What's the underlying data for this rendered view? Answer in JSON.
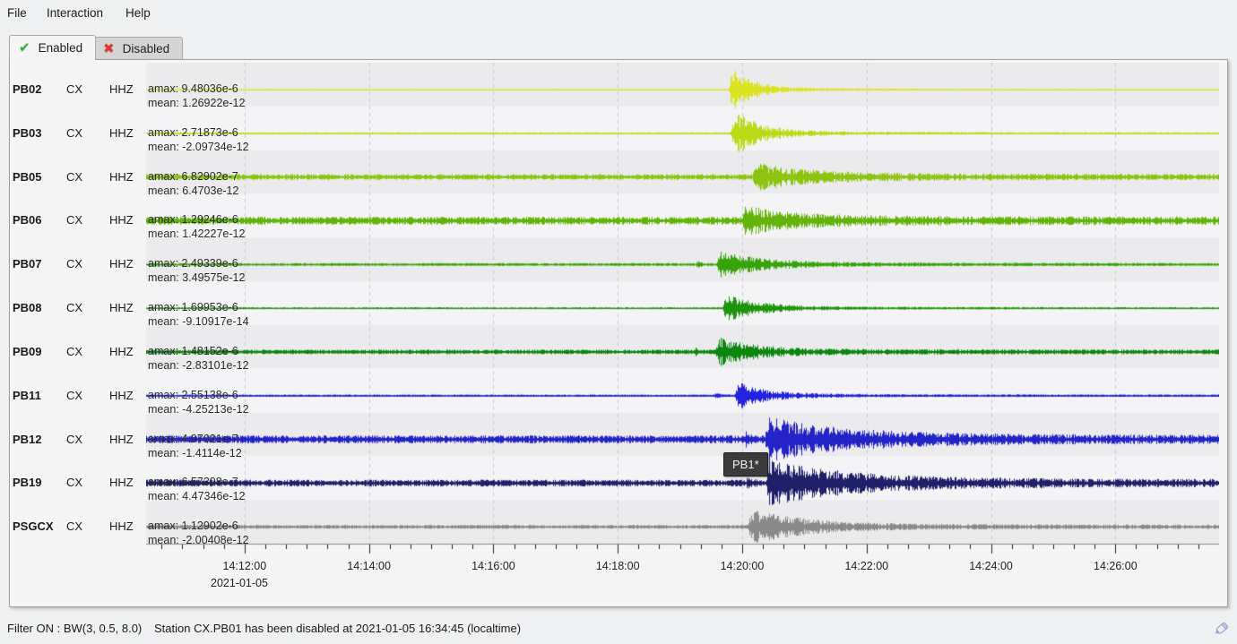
{
  "menu": {
    "items": [
      "File",
      "Interaction",
      "Help"
    ]
  },
  "tabs": {
    "enabled": {
      "label": "Enabled",
      "icon": "green-check"
    },
    "disabled": {
      "label": "Disabled",
      "icon": "red-cross"
    }
  },
  "colors": {
    "panel_bg": "#f5f5f6",
    "band_dark": "#ebebed",
    "band_light": "#f4f4f6",
    "gridline": "#c7c9cb",
    "axis_line": "#8a8a8a",
    "tick": "#222222",
    "tooltip_bg": "#3b3b3b"
  },
  "stations": [
    {
      "code": "PB02",
      "network": "CX",
      "channel": "HHZ",
      "amax": "amax: 9.48036e-6",
      "mean": "mean: 1.26922e-12",
      "color": "#d9e41f",
      "trace": {
        "noise": 0.6,
        "burst_s": 1190,
        "amp": 23,
        "decay": 22,
        "pre": false
      }
    },
    {
      "code": "PB03",
      "network": "CX",
      "channel": "HHZ",
      "amax": "amax: 2.71873e-6",
      "mean": "mean: -2.09734e-12",
      "color": "#b9da14",
      "trace": {
        "noise": 1.0,
        "burst_s": 1192,
        "amp": 23,
        "decay": 28,
        "pre": false
      }
    },
    {
      "code": "PB05",
      "network": "CX",
      "channel": "HHZ",
      "amax": "amax: 6.82902e-7",
      "mean": "mean: 6.4703e-12",
      "color": "#8cc40f",
      "trace": {
        "noise": 3.2,
        "burst_s": 1213,
        "amp": 13,
        "decay": 55,
        "pre": false
      }
    },
    {
      "code": "PB06",
      "network": "CX",
      "channel": "HHZ",
      "amax": "amax: 1.29246e-6",
      "mean": "mean: 1.42227e-12",
      "color": "#63b309",
      "trace": {
        "noise": 4.5,
        "burst_s": 1203,
        "amp": 13,
        "decay": 50,
        "pre": false
      }
    },
    {
      "code": "PB07",
      "network": "CX",
      "channel": "HHZ",
      "amax": "amax: 2.49339e-6",
      "mean": "mean: 3.49575e-12",
      "color": "#36a309",
      "trace": {
        "noise": 1.6,
        "burst_s": 1178,
        "amp": 13,
        "decay": 45,
        "pre": true
      }
    },
    {
      "code": "PB08",
      "network": "CX",
      "channel": "HHZ",
      "amax": "amax: 1.69953e-6",
      "mean": "mean: -9.10917e-14",
      "color": "#1d9409",
      "trace": {
        "noise": 1.1,
        "burst_s": 1184,
        "amp": 14,
        "decay": 35,
        "pre": false
      }
    },
    {
      "code": "PB09",
      "network": "CX",
      "channel": "HHZ",
      "amax": "amax: 1.48152e-6",
      "mean": "mean: -2.83101e-12",
      "color": "#0c860f",
      "trace": {
        "noise": 2.6,
        "burst_s": 1177,
        "amp": 13,
        "decay": 40,
        "pre": true
      }
    },
    {
      "code": "PB11",
      "network": "CX",
      "channel": "HHZ",
      "amax": "amax: 2.55138e-6",
      "mean": "mean: -4.25213e-12",
      "color": "#2222e0",
      "trace": {
        "noise": 1.3,
        "burst_s": 1196,
        "amp": 13,
        "decay": 30,
        "pre": true
      }
    },
    {
      "code": "PB12",
      "network": "CX",
      "channel": "HHZ",
      "amax": "amax: 4.97021e-7",
      "mean": "mean: -1.4114e-12",
      "color": "#2323c8",
      "trace": {
        "noise": 4.5,
        "burst_s": 1225,
        "amp": 19,
        "decay": 85,
        "pre": true
      }
    },
    {
      "code": "PB19",
      "network": "CX",
      "channel": "HHZ",
      "amax": "amax: 6.57308e-7",
      "mean": "mean: 4.47346e-12",
      "color": "#20206a",
      "trace": {
        "noise": 3.8,
        "burst_s": 1226,
        "amp": 21,
        "decay": 85,
        "pre": true
      }
    },
    {
      "code": "PSGCX",
      "network": "CX",
      "channel": "HHZ",
      "amax": "amax: 1.12902e-6",
      "mean": "mean: -2.00408e-12",
      "color": "#8a8a8a",
      "trace": {
        "noise": 2.2,
        "burst_s": 1208,
        "amp": 17,
        "decay": 55,
        "pre": false
      }
    }
  ],
  "axis": {
    "window": [
      625,
      1660
    ],
    "minor_step": 20,
    "date": "2021-01-05",
    "ticks": [
      {
        "s": 720,
        "label": "14:12:00"
      },
      {
        "s": 840,
        "label": "14:14:00"
      },
      {
        "s": 960,
        "label": "14:16:00"
      },
      {
        "s": 1080,
        "label": "14:18:00"
      },
      {
        "s": 1200,
        "label": "14:20:00"
      },
      {
        "s": 1320,
        "label": "14:22:00"
      },
      {
        "s": 1440,
        "label": "14:24:00"
      },
      {
        "s": 1560,
        "label": "14:26:00"
      }
    ]
  },
  "tooltip": {
    "text": "PB1*"
  },
  "statusbar": {
    "filter": "Filter ON : BW(3, 0.5, 8.0)",
    "message": "Station CX.PB01 has been disabled at 2021-01-05 16:34:45 (localtime)"
  }
}
